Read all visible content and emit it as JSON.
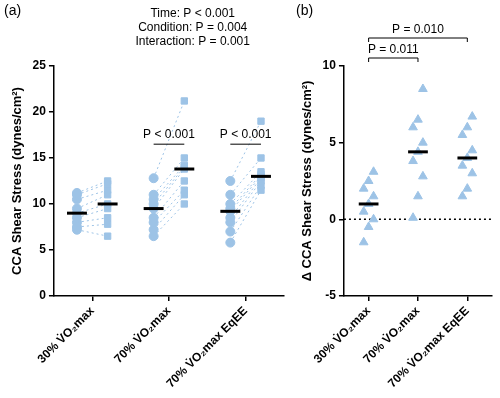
{
  "chart_data": [
    {
      "type": "paired_scatter",
      "panel_label": "(a)",
      "y_label": "CCA Shear Stress (dynes/cm²)",
      "categories": [
        "30% V̇O₂max",
        "70% V̇O₂max",
        "70% V̇O₂max EqEE"
      ],
      "ylim": [
        0,
        25
      ],
      "yticks": [
        0,
        5,
        10,
        15,
        20,
        25
      ],
      "color": "#9dc3e6",
      "line_style": "dotted",
      "annotations": [
        "Time: P < 0.001",
        "Condition: P = 0.004",
        "Interaction: P = 0.001"
      ],
      "series": [
        {
          "marker": "circle",
          "values": [
            [
              7.2,
              7.5,
              8.0,
              8.5,
              9.0,
              9.5,
              10.5,
              11.0,
              11.2
            ],
            [
              6.5,
              7.2,
              8.0,
              8.5,
              9.5,
              10.0,
              10.5,
              11.0,
              12.8
            ],
            [
              5.8,
              7.0,
              8.0,
              8.5,
              9.2,
              9.5,
              10.0,
              11.0,
              12.5
            ]
          ],
          "medians": [
            9.0,
            9.5,
            9.2
          ]
        },
        {
          "marker": "square",
          "values": [
            [
              6.5,
              7.8,
              8.5,
              9.5,
              10.0,
              11.0,
              11.5,
              12.2,
              12.5
            ],
            [
              10.0,
              11.0,
              11.5,
              12.5,
              13.8,
              14.0,
              14.2,
              15.0,
              21.2
            ],
            [
              11.5,
              12.0,
              12.5,
              12.8,
              13.0,
              13.2,
              13.5,
              15.0,
              19.0
            ]
          ],
          "medians": [
            10.0,
            13.8,
            13.0
          ]
        }
      ],
      "comparisons": [
        null,
        "P < 0.001",
        "P < 0.001"
      ]
    },
    {
      "type": "scatter",
      "panel_label": "(b)",
      "y_label": "Δ CCA Shear Stress (dynes/cm²)",
      "categories": [
        "30% V̇O₂max",
        "70% V̇O₂max",
        "70% V̇O₂max EqEE"
      ],
      "ylim": [
        -5,
        10
      ],
      "yticks": [
        -5,
        0,
        5,
        10
      ],
      "color": "#9dc3e6",
      "marker": "triangle",
      "values": [
        [
          -1.5,
          -0.5,
          0.0,
          0.5,
          1.0,
          1.5,
          2.0,
          2.5,
          3.1
        ],
        [
          0.1,
          1.5,
          2.8,
          3.8,
          4.4,
          5.0,
          6.0,
          6.5,
          8.5
        ],
        [
          1.5,
          2.0,
          3.0,
          3.5,
          4.0,
          4.5,
          5.5,
          6.0,
          6.7
        ]
      ],
      "medians": [
        1.0,
        4.4,
        4.0
      ],
      "reference_line": 0,
      "comparisons": [
        {
          "from": 0,
          "to": 1,
          "label": "P = 0.011"
        },
        {
          "from": 0,
          "to": 2,
          "label": "P = 0.010"
        }
      ]
    }
  ]
}
